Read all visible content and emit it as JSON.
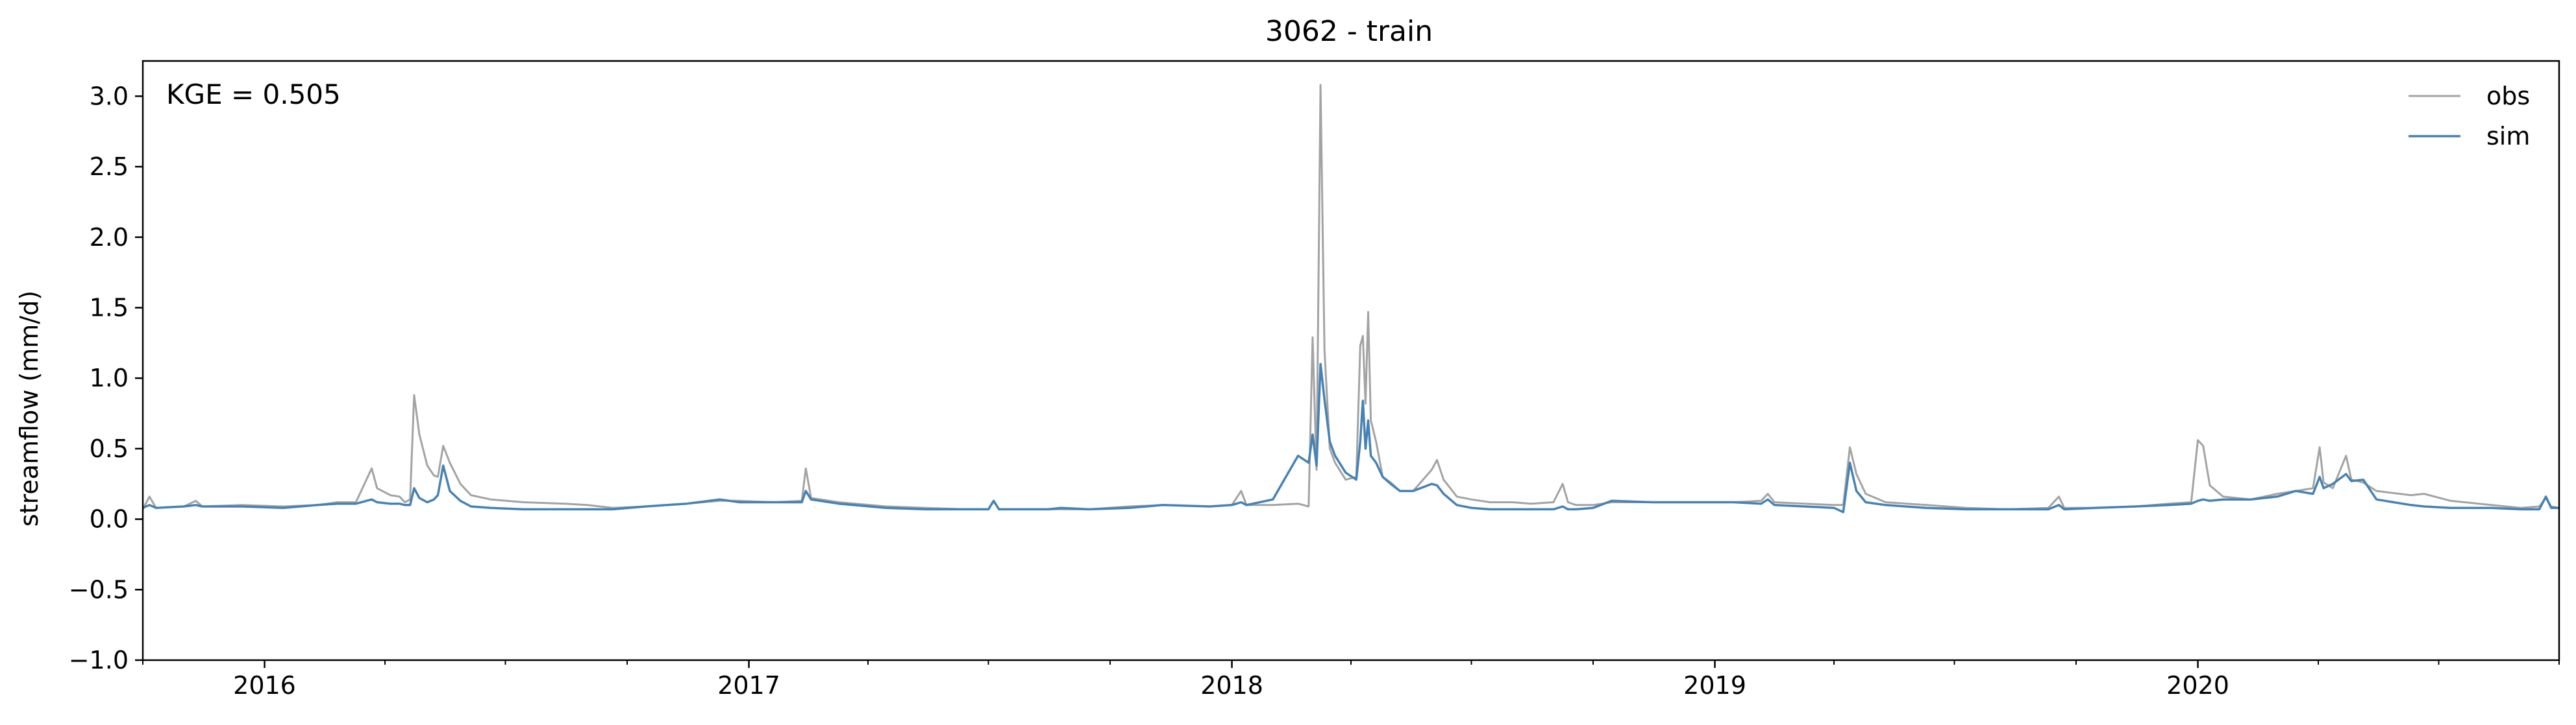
{
  "chart_data": {
    "type": "line",
    "title": "3062 - train",
    "ylabel": "streamflow (mm/d)",
    "xlabel": "",
    "annotation": "KGE = 0.505",
    "ylim": [
      -1.0,
      3.25
    ],
    "xlim": [
      "2015-10-01",
      "2020-09-30"
    ],
    "y_ticks": [
      -1.0,
      -0.5,
      0.0,
      0.5,
      1.0,
      1.5,
      2.0,
      2.5,
      3.0
    ],
    "y_tick_labels": [
      "−1.0",
      "−0.5",
      "0.0",
      "0.5",
      "1.0",
      "1.5",
      "2.0",
      "2.5",
      "3.0"
    ],
    "x_ticks": [
      "2016-01-01",
      "2017-01-01",
      "2018-01-01",
      "2019-01-01",
      "2020-01-01"
    ],
    "x_tick_labels": [
      "2016",
      "2017",
      "2018",
      "2019",
      "2020"
    ],
    "x_minor_ticks": [
      "2015-10-01",
      "2016-04-01",
      "2016-07-01",
      "2016-10-01",
      "2017-04-01",
      "2017-07-01",
      "2017-10-01",
      "2018-04-01",
      "2018-07-01",
      "2018-10-01",
      "2019-04-01",
      "2019-07-01",
      "2019-10-01",
      "2020-04-01",
      "2020-07-01",
      "2020-09-30"
    ],
    "grid": false,
    "legend_position": "top-right",
    "series": [
      {
        "name": "obs",
        "color": "#a3a3a3",
        "points": [
          [
            "2015-10-01",
            0.07
          ],
          [
            "2015-10-06",
            0.16
          ],
          [
            "2015-10-11",
            0.08
          ],
          [
            "2015-11-01",
            0.09
          ],
          [
            "2015-11-10",
            0.13
          ],
          [
            "2015-11-15",
            0.09
          ],
          [
            "2015-12-15",
            0.1
          ],
          [
            "2016-01-15",
            0.09
          ],
          [
            "2016-02-10",
            0.1
          ],
          [
            "2016-02-25",
            0.12
          ],
          [
            "2016-03-10",
            0.12
          ],
          [
            "2016-03-22",
            0.36
          ],
          [
            "2016-03-26",
            0.22
          ],
          [
            "2016-04-05",
            0.17
          ],
          [
            "2016-04-12",
            0.16
          ],
          [
            "2016-04-16",
            0.12
          ],
          [
            "2016-04-20",
            0.14
          ],
          [
            "2016-04-23",
            0.88
          ],
          [
            "2016-04-27",
            0.6
          ],
          [
            "2016-05-03",
            0.38
          ],
          [
            "2016-05-08",
            0.31
          ],
          [
            "2016-05-11",
            0.3
          ],
          [
            "2016-05-15",
            0.52
          ],
          [
            "2016-05-20",
            0.4
          ],
          [
            "2016-05-28",
            0.25
          ],
          [
            "2016-06-05",
            0.17
          ],
          [
            "2016-06-20",
            0.14
          ],
          [
            "2016-07-15",
            0.12
          ],
          [
            "2016-08-15",
            0.11
          ],
          [
            "2016-09-01",
            0.1
          ],
          [
            "2016-09-20",
            0.08
          ],
          [
            "2016-10-15",
            0.09
          ],
          [
            "2016-11-15",
            0.11
          ],
          [
            "2016-12-10",
            0.13
          ],
          [
            "2016-12-25",
            0.13
          ],
          [
            "2017-01-20",
            0.12
          ],
          [
            "2017-02-10",
            0.13
          ],
          [
            "2017-02-13",
            0.36
          ],
          [
            "2017-02-17",
            0.15
          ],
          [
            "2017-03-10",
            0.12
          ],
          [
            "2017-04-15",
            0.09
          ],
          [
            "2017-05-15",
            0.08
          ],
          [
            "2017-06-15",
            0.07
          ],
          [
            "2017-07-01",
            0.07
          ],
          [
            "2017-07-05",
            0.13
          ],
          [
            "2017-07-09",
            0.07
          ],
          [
            "2017-08-15",
            0.07
          ],
          [
            "2017-08-25",
            0.07
          ],
          [
            "2017-09-15",
            0.07
          ],
          [
            "2017-10-15",
            0.09
          ],
          [
            "2017-11-10",
            0.1
          ],
          [
            "2017-12-15",
            0.09
          ],
          [
            "2018-01-01",
            0.1
          ],
          [
            "2018-01-08",
            0.2
          ],
          [
            "2018-01-12",
            0.1
          ],
          [
            "2018-02-01",
            0.1
          ],
          [
            "2018-02-20",
            0.11
          ],
          [
            "2018-02-28",
            0.09
          ],
          [
            "2018-03-03",
            1.29
          ],
          [
            "2018-03-06",
            0.35
          ],
          [
            "2018-03-09",
            3.08
          ],
          [
            "2018-03-12",
            1.2
          ],
          [
            "2018-03-16",
            0.5
          ],
          [
            "2018-03-20",
            0.4
          ],
          [
            "2018-03-28",
            0.28
          ],
          [
            "2018-04-05",
            0.3
          ],
          [
            "2018-04-08",
            1.23
          ],
          [
            "2018-04-10",
            1.3
          ],
          [
            "2018-04-12",
            0.82
          ],
          [
            "2018-04-14",
            1.47
          ],
          [
            "2018-04-16",
            0.7
          ],
          [
            "2018-04-20",
            0.55
          ],
          [
            "2018-04-25",
            0.3
          ],
          [
            "2018-05-01",
            0.26
          ],
          [
            "2018-05-08",
            0.2
          ],
          [
            "2018-05-18",
            0.2
          ],
          [
            "2018-06-01",
            0.35
          ],
          [
            "2018-06-05",
            0.42
          ],
          [
            "2018-06-10",
            0.28
          ],
          [
            "2018-06-20",
            0.16
          ],
          [
            "2018-07-01",
            0.14
          ],
          [
            "2018-07-15",
            0.12
          ],
          [
            "2018-08-01",
            0.12
          ],
          [
            "2018-08-15",
            0.11
          ],
          [
            "2018-09-01",
            0.12
          ],
          [
            "2018-09-08",
            0.25
          ],
          [
            "2018-09-12",
            0.12
          ],
          [
            "2018-09-18",
            0.1
          ],
          [
            "2018-10-01",
            0.1
          ],
          [
            "2018-10-15",
            0.12
          ],
          [
            "2018-11-15",
            0.12
          ],
          [
            "2018-12-15",
            0.12
          ],
          [
            "2019-01-15",
            0.12
          ],
          [
            "2019-02-05",
            0.13
          ],
          [
            "2019-02-10",
            0.18
          ],
          [
            "2019-02-15",
            0.12
          ],
          [
            "2019-03-10",
            0.11
          ],
          [
            "2019-04-01",
            0.1
          ],
          [
            "2019-04-08",
            0.1
          ],
          [
            "2019-04-13",
            0.51
          ],
          [
            "2019-04-18",
            0.32
          ],
          [
            "2019-04-25",
            0.18
          ],
          [
            "2019-05-10",
            0.12
          ],
          [
            "2019-06-10",
            0.1
          ],
          [
            "2019-07-10",
            0.08
          ],
          [
            "2019-08-10",
            0.07
          ],
          [
            "2019-09-10",
            0.08
          ],
          [
            "2019-09-18",
            0.16
          ],
          [
            "2019-09-22",
            0.08
          ],
          [
            "2019-10-15",
            0.08
          ],
          [
            "2019-11-15",
            0.09
          ],
          [
            "2019-12-10",
            0.11
          ],
          [
            "2019-12-27",
            0.12
          ],
          [
            "2020-01-01",
            0.56
          ],
          [
            "2020-01-05",
            0.52
          ],
          [
            "2020-01-10",
            0.24
          ],
          [
            "2020-01-20",
            0.16
          ],
          [
            "2020-02-10",
            0.14
          ],
          [
            "2020-03-01",
            0.18
          ],
          [
            "2020-03-15",
            0.2
          ],
          [
            "2020-03-28",
            0.22
          ],
          [
            "2020-04-02",
            0.51
          ],
          [
            "2020-04-05",
            0.26
          ],
          [
            "2020-04-12",
            0.22
          ],
          [
            "2020-04-22",
            0.45
          ],
          [
            "2020-04-26",
            0.28
          ],
          [
            "2020-05-05",
            0.26
          ],
          [
            "2020-05-15",
            0.2
          ],
          [
            "2020-06-10",
            0.17
          ],
          [
            "2020-06-20",
            0.18
          ],
          [
            "2020-07-10",
            0.13
          ],
          [
            "2020-08-10",
            0.1
          ],
          [
            "2020-09-01",
            0.08
          ],
          [
            "2020-09-15",
            0.09
          ],
          [
            "2020-09-20",
            0.15
          ],
          [
            "2020-09-24",
            0.09
          ],
          [
            "2020-09-30",
            0.08
          ]
        ]
      },
      {
        "name": "sim",
        "color": "#4682b4",
        "points": [
          [
            "2015-10-01",
            0.08
          ],
          [
            "2015-10-06",
            0.1
          ],
          [
            "2015-10-11",
            0.08
          ],
          [
            "2015-11-01",
            0.09
          ],
          [
            "2015-11-10",
            0.1
          ],
          [
            "2015-11-15",
            0.09
          ],
          [
            "2015-12-15",
            0.09
          ],
          [
            "2016-01-15",
            0.08
          ],
          [
            "2016-02-10",
            0.1
          ],
          [
            "2016-02-25",
            0.11
          ],
          [
            "2016-03-10",
            0.11
          ],
          [
            "2016-03-22",
            0.14
          ],
          [
            "2016-03-26",
            0.12
          ],
          [
            "2016-04-05",
            0.11
          ],
          [
            "2016-04-12",
            0.11
          ],
          [
            "2016-04-16",
            0.1
          ],
          [
            "2016-04-20",
            0.1
          ],
          [
            "2016-04-23",
            0.22
          ],
          [
            "2016-04-27",
            0.15
          ],
          [
            "2016-05-03",
            0.12
          ],
          [
            "2016-05-08",
            0.14
          ],
          [
            "2016-05-11",
            0.17
          ],
          [
            "2016-05-15",
            0.38
          ],
          [
            "2016-05-20",
            0.2
          ],
          [
            "2016-05-28",
            0.13
          ],
          [
            "2016-06-05",
            0.09
          ],
          [
            "2016-06-20",
            0.08
          ],
          [
            "2016-07-15",
            0.07
          ],
          [
            "2016-08-15",
            0.07
          ],
          [
            "2016-09-01",
            0.07
          ],
          [
            "2016-09-20",
            0.07
          ],
          [
            "2016-10-15",
            0.09
          ],
          [
            "2016-11-15",
            0.11
          ],
          [
            "2016-12-10",
            0.14
          ],
          [
            "2016-12-25",
            0.12
          ],
          [
            "2017-01-20",
            0.12
          ],
          [
            "2017-02-10",
            0.12
          ],
          [
            "2017-02-13",
            0.2
          ],
          [
            "2017-02-17",
            0.14
          ],
          [
            "2017-03-10",
            0.11
          ],
          [
            "2017-04-15",
            0.08
          ],
          [
            "2017-05-15",
            0.07
          ],
          [
            "2017-06-15",
            0.07
          ],
          [
            "2017-07-01",
            0.07
          ],
          [
            "2017-07-05",
            0.13
          ],
          [
            "2017-07-09",
            0.07
          ],
          [
            "2017-08-15",
            0.07
          ],
          [
            "2017-08-25",
            0.08
          ],
          [
            "2017-09-15",
            0.07
          ],
          [
            "2017-10-15",
            0.08
          ],
          [
            "2017-11-10",
            0.1
          ],
          [
            "2017-12-15",
            0.09
          ],
          [
            "2018-01-01",
            0.1
          ],
          [
            "2018-01-08",
            0.12
          ],
          [
            "2018-01-12",
            0.1
          ],
          [
            "2018-02-01",
            0.14
          ],
          [
            "2018-02-20",
            0.45
          ],
          [
            "2018-02-28",
            0.4
          ],
          [
            "2018-03-03",
            0.6
          ],
          [
            "2018-03-06",
            0.38
          ],
          [
            "2018-03-09",
            1.1
          ],
          [
            "2018-03-12",
            0.85
          ],
          [
            "2018-03-16",
            0.55
          ],
          [
            "2018-03-20",
            0.45
          ],
          [
            "2018-03-28",
            0.33
          ],
          [
            "2018-04-05",
            0.28
          ],
          [
            "2018-04-08",
            0.55
          ],
          [
            "2018-04-10",
            0.84
          ],
          [
            "2018-04-12",
            0.5
          ],
          [
            "2018-04-14",
            0.7
          ],
          [
            "2018-04-16",
            0.45
          ],
          [
            "2018-04-20",
            0.4
          ],
          [
            "2018-04-25",
            0.3
          ],
          [
            "2018-05-01",
            0.25
          ],
          [
            "2018-05-08",
            0.2
          ],
          [
            "2018-05-18",
            0.2
          ],
          [
            "2018-06-01",
            0.25
          ],
          [
            "2018-06-05",
            0.24
          ],
          [
            "2018-06-10",
            0.18
          ],
          [
            "2018-06-20",
            0.1
          ],
          [
            "2018-07-01",
            0.08
          ],
          [
            "2018-07-15",
            0.07
          ],
          [
            "2018-08-01",
            0.07
          ],
          [
            "2018-08-15",
            0.07
          ],
          [
            "2018-09-01",
            0.07
          ],
          [
            "2018-09-08",
            0.09
          ],
          [
            "2018-09-12",
            0.07
          ],
          [
            "2018-09-18",
            0.07
          ],
          [
            "2018-10-01",
            0.08
          ],
          [
            "2018-10-15",
            0.13
          ],
          [
            "2018-11-15",
            0.12
          ],
          [
            "2018-12-15",
            0.12
          ],
          [
            "2019-01-15",
            0.12
          ],
          [
            "2019-02-05",
            0.11
          ],
          [
            "2019-02-10",
            0.14
          ],
          [
            "2019-02-15",
            0.1
          ],
          [
            "2019-03-10",
            0.09
          ],
          [
            "2019-04-01",
            0.08
          ],
          [
            "2019-04-08",
            0.05
          ],
          [
            "2019-04-13",
            0.4
          ],
          [
            "2019-04-18",
            0.2
          ],
          [
            "2019-04-25",
            0.12
          ],
          [
            "2019-05-10",
            0.1
          ],
          [
            "2019-06-10",
            0.08
          ],
          [
            "2019-07-10",
            0.07
          ],
          [
            "2019-08-10",
            0.07
          ],
          [
            "2019-09-10",
            0.07
          ],
          [
            "2019-09-18",
            0.1
          ],
          [
            "2019-09-22",
            0.07
          ],
          [
            "2019-10-15",
            0.08
          ],
          [
            "2019-11-15",
            0.09
          ],
          [
            "2019-12-10",
            0.1
          ],
          [
            "2019-12-27",
            0.11
          ],
          [
            "2020-01-01",
            0.13
          ],
          [
            "2020-01-05",
            0.14
          ],
          [
            "2020-01-10",
            0.13
          ],
          [
            "2020-01-20",
            0.14
          ],
          [
            "2020-02-10",
            0.14
          ],
          [
            "2020-03-01",
            0.16
          ],
          [
            "2020-03-15",
            0.2
          ],
          [
            "2020-03-28",
            0.18
          ],
          [
            "2020-04-02",
            0.3
          ],
          [
            "2020-04-05",
            0.22
          ],
          [
            "2020-04-12",
            0.25
          ],
          [
            "2020-04-22",
            0.32
          ],
          [
            "2020-04-26",
            0.27
          ],
          [
            "2020-05-05",
            0.28
          ],
          [
            "2020-05-15",
            0.14
          ],
          [
            "2020-06-10",
            0.1
          ],
          [
            "2020-06-20",
            0.09
          ],
          [
            "2020-07-10",
            0.08
          ],
          [
            "2020-08-10",
            0.08
          ],
          [
            "2020-09-01",
            0.07
          ],
          [
            "2020-09-15",
            0.07
          ],
          [
            "2020-09-20",
            0.16
          ],
          [
            "2020-09-24",
            0.08
          ],
          [
            "2020-09-30",
            0.08
          ]
        ]
      }
    ]
  }
}
